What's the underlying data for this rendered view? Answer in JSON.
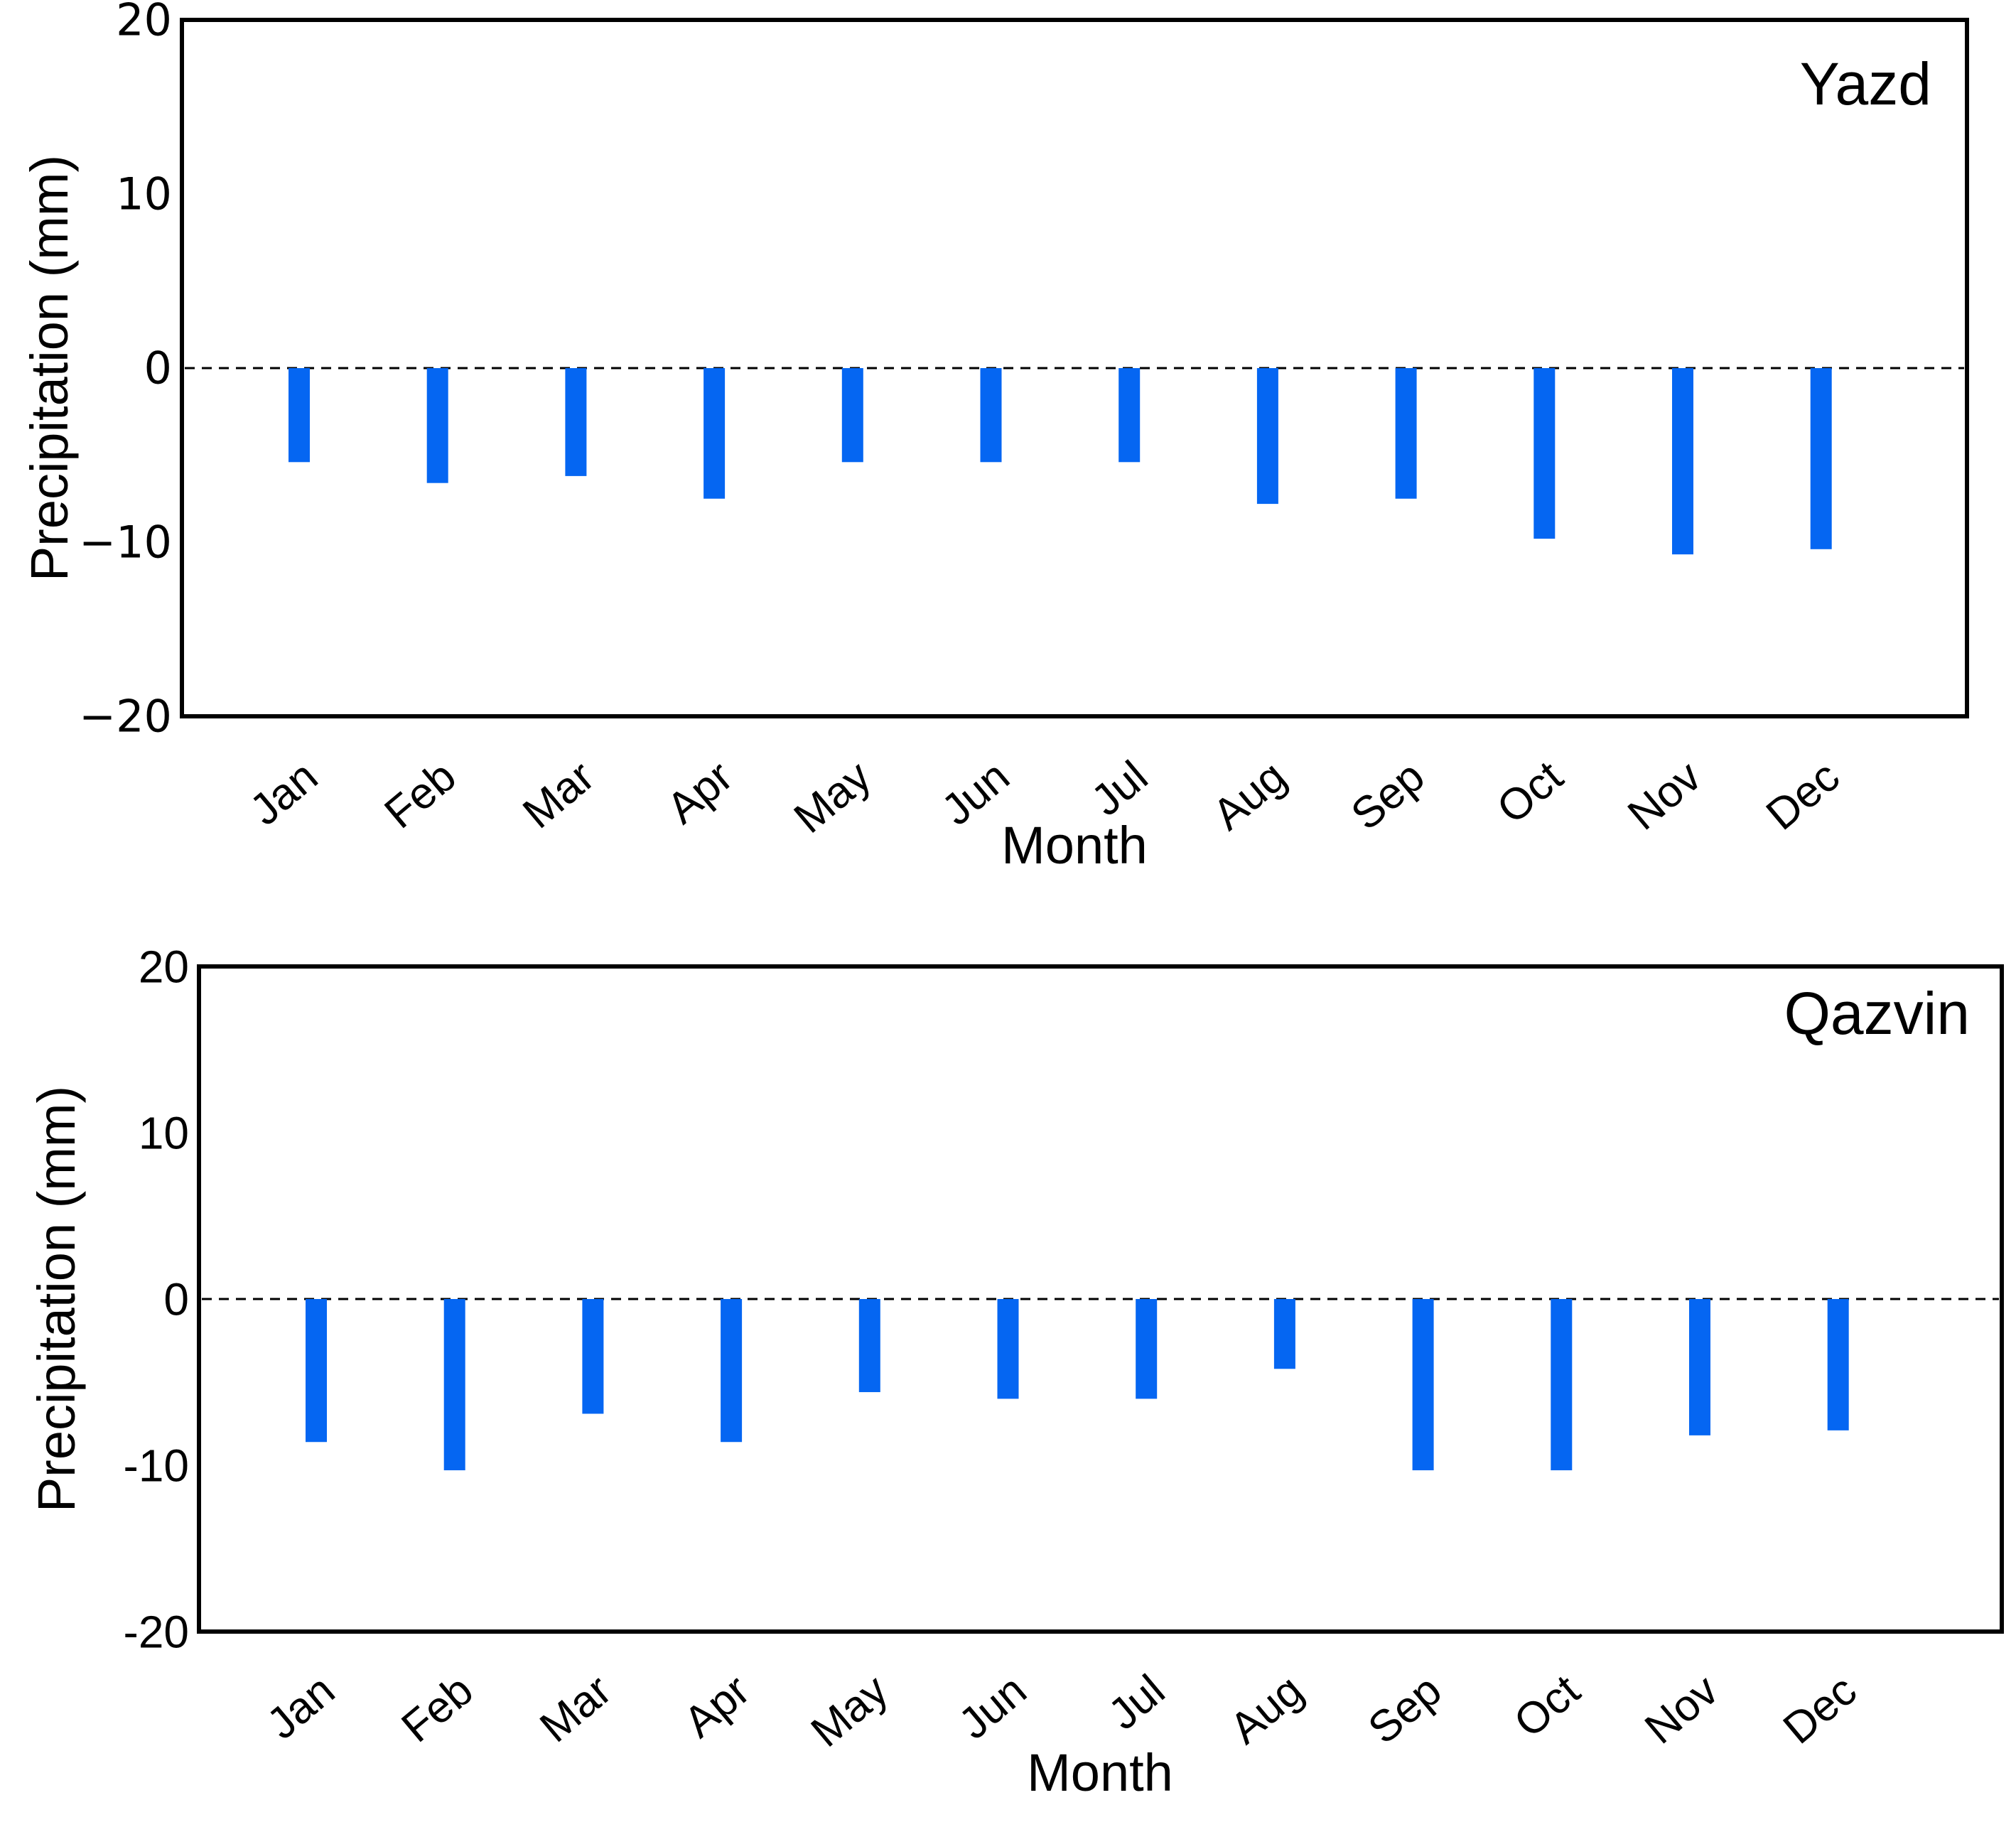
{
  "figure": {
    "background": "#ffffff",
    "text_color": "#000000",
    "axis_color": "#000000",
    "bar_color": "#0566f2"
  },
  "chart_data": [
    {
      "type": "bar",
      "title": "Yazd",
      "xlabel": "Month",
      "ylabel": "Precipitation (mm)",
      "categories": [
        "Jan",
        "Feb",
        "Mar",
        "Apr",
        "May",
        "Jun",
        "Jul",
        "Aug",
        "Sep",
        "Oct",
        "Nov",
        "Dec"
      ],
      "values": [
        -5.4,
        -6.6,
        -6.2,
        -7.5,
        -5.4,
        -5.4,
        -5.4,
        -7.8,
        -7.5,
        -9.8,
        -10.7,
        -10.4
      ],
      "ylim": [
        -20,
        20
      ],
      "y_ticks": [
        20,
        10,
        0,
        -10,
        -20
      ],
      "y_tick_labels": [
        "20",
        "10",
        "0",
        "−10",
        "−20"
      ],
      "zero_line_style": "dashed",
      "grid": false,
      "legend": "none",
      "bar_color": "#0566f2"
    },
    {
      "type": "bar",
      "title": "Qazvin",
      "xlabel": "Month",
      "ylabel": "Precipitation (mm)",
      "categories": [
        "Jan",
        "Feb",
        "Mar",
        "Apr",
        "May",
        "Jun",
        "Jul",
        "Aug",
        "Sep",
        "Oct",
        "Nov",
        "Dec"
      ],
      "values": [
        -8.6,
        -10.3,
        -6.9,
        -8.6,
        -5.6,
        -6.0,
        -6.0,
        -4.2,
        -10.3,
        -10.3,
        -8.2,
        -7.9
      ],
      "ylim": [
        -20,
        20
      ],
      "y_ticks": [
        20,
        10,
        0,
        -10,
        -20
      ],
      "y_tick_labels": [
        "20",
        "10",
        "0",
        "-10",
        "-20"
      ],
      "zero_line_style": "dashed",
      "grid": false,
      "legend": "none",
      "bar_color": "#0566f2"
    }
  ]
}
